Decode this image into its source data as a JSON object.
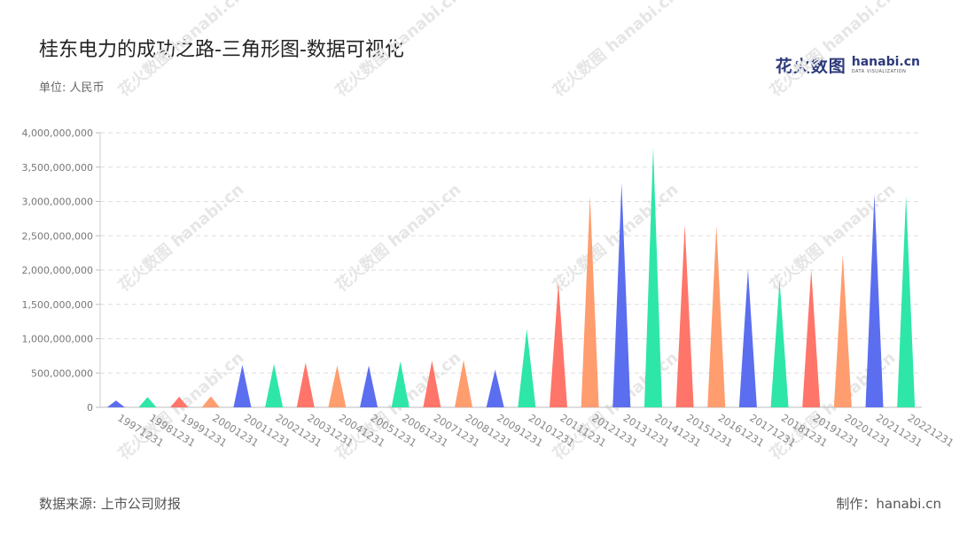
{
  "title": "桂东电力的成功之路-三角形图-数据可视化",
  "unit_label": "单位: 人民币",
  "logo": {
    "cn": "花火数图",
    "en": "hanabi.cn",
    "tagline": "DATA VISUALIZATION"
  },
  "source_label": "数据来源: 上市公司财报",
  "credit_label": "制作：hanabi.cn",
  "watermark_text": "花火数图 hanabi.cn",
  "colors": [
    "#5b6ef0",
    "#2ee6a8",
    "#ff7569",
    "#ff9d6e"
  ],
  "chart_data": {
    "type": "bar",
    "mark": "triangle",
    "categories": [
      "19971231",
      "19981231",
      "19991231",
      "20001231",
      "20011231",
      "20021231",
      "20031231",
      "20041231",
      "20051231",
      "20061231",
      "20071231",
      "20081231",
      "20091231",
      "20101231",
      "20111231",
      "20121231",
      "20131231",
      "20141231",
      "20151231",
      "20161231",
      "20171231",
      "20181231",
      "20191231",
      "20201231",
      "20211231",
      "20221231"
    ],
    "values": [
      100000000,
      150000000,
      155000000,
      160000000,
      620000000,
      630000000,
      650000000,
      610000000,
      610000000,
      670000000,
      680000000,
      690000000,
      550000000,
      1140000000,
      1820000000,
      3080000000,
      3270000000,
      3790000000,
      2660000000,
      2650000000,
      2010000000,
      1850000000,
      2010000000,
      2230000000,
      3110000000,
      3080000000
    ],
    "yticks": [
      "0",
      "500,000,000",
      "1,000,000,000",
      "1,500,000,000",
      "2,000,000,000",
      "2,500,000,000",
      "3,000,000,000",
      "3,500,000,000",
      "4,000,000,000"
    ],
    "ylim": [
      0,
      4000000000
    ],
    "grid": true
  }
}
